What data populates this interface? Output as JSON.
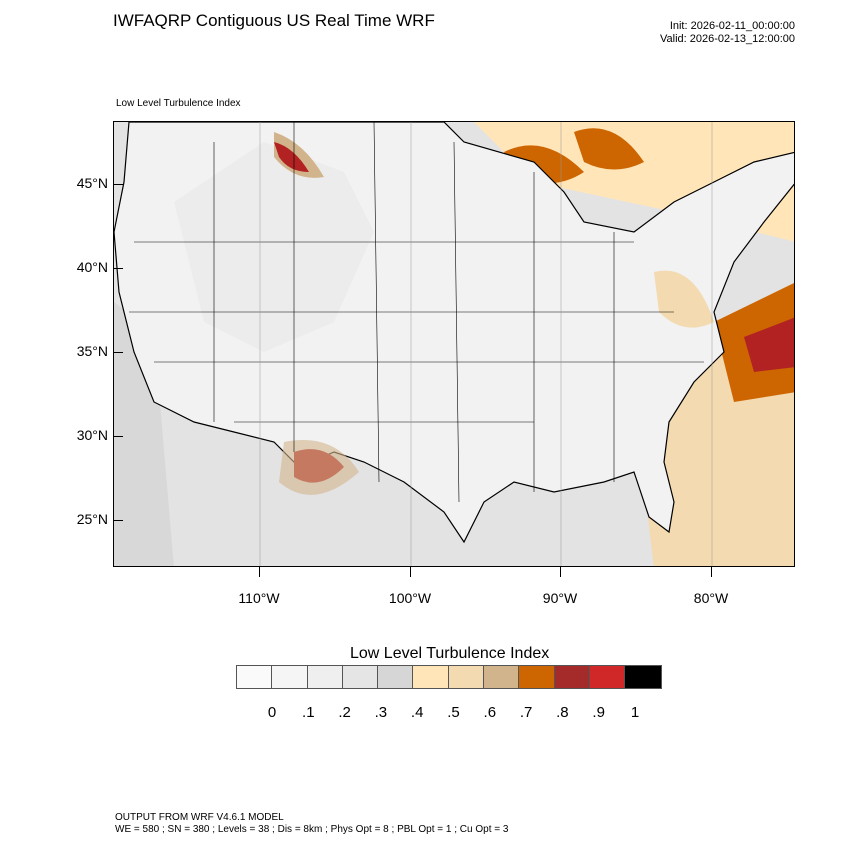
{
  "header": {
    "title": "IWFAQRP Contiguous US Real Time WRF",
    "init": "Init: 2026-02-11_00:00:00",
    "valid": "Valid: 2026-02-13_12:00:00"
  },
  "map": {
    "subtitle": "Low Level Turbulence Index",
    "lat_labels": [
      "45°N",
      "40°N",
      "35°N",
      "30°N",
      "25°N"
    ],
    "lon_labels": [
      "110°W",
      "100°W",
      "90°W",
      "80°W"
    ]
  },
  "colorbar": {
    "title": "Low Level Turbulence Index",
    "colors": [
      "#fafafa",
      "#f5f5f5",
      "#efefef",
      "#e5e5e5",
      "#d6d6d6",
      "#ffe5b8",
      "#f3dab0",
      "#d2b48c",
      "#cd6600",
      "#a52a2a",
      "#d02828",
      "#000000"
    ],
    "labels": [
      "0",
      ".1",
      ".2",
      ".3",
      ".4",
      ".5",
      ".6",
      ".7",
      ".8",
      ".9",
      "1"
    ]
  },
  "footer": {
    "line1": "OUTPUT FROM WRF V4.6.1 MODEL",
    "line2": "WE = 580 ; SN = 380 ; Levels = 38 ; Dis = 8km ; Phys Opt = 8 ; PBL Opt = 1 ; Cu Opt = 3"
  }
}
